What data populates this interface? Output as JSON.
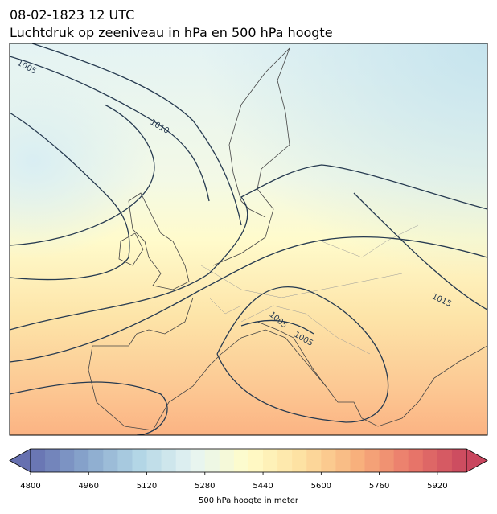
{
  "header": {
    "title": "08-02-1823 12 UTC",
    "subtitle": "Luchtdruk op zeeniveau in hPa en 500 hPa hoogte"
  },
  "map": {
    "isobar_labels": [
      1005,
      1010,
      1015,
      1005,
      1005
    ]
  },
  "colorbar": {
    "label": "500 hPa hoogte in meter",
    "lim": [
      4800,
      6000
    ],
    "level_step": 40,
    "ticks": [
      4800,
      4960,
      5120,
      5280,
      5440,
      5600,
      5760,
      5920
    ],
    "palette": [
      "#6670b0",
      "#87a5cc",
      "#b3d6e6",
      "#e6f4f2",
      "#fffcc8",
      "#fde0a0",
      "#f8b07c",
      "#e9776a",
      "#c9465e"
    ]
  }
}
